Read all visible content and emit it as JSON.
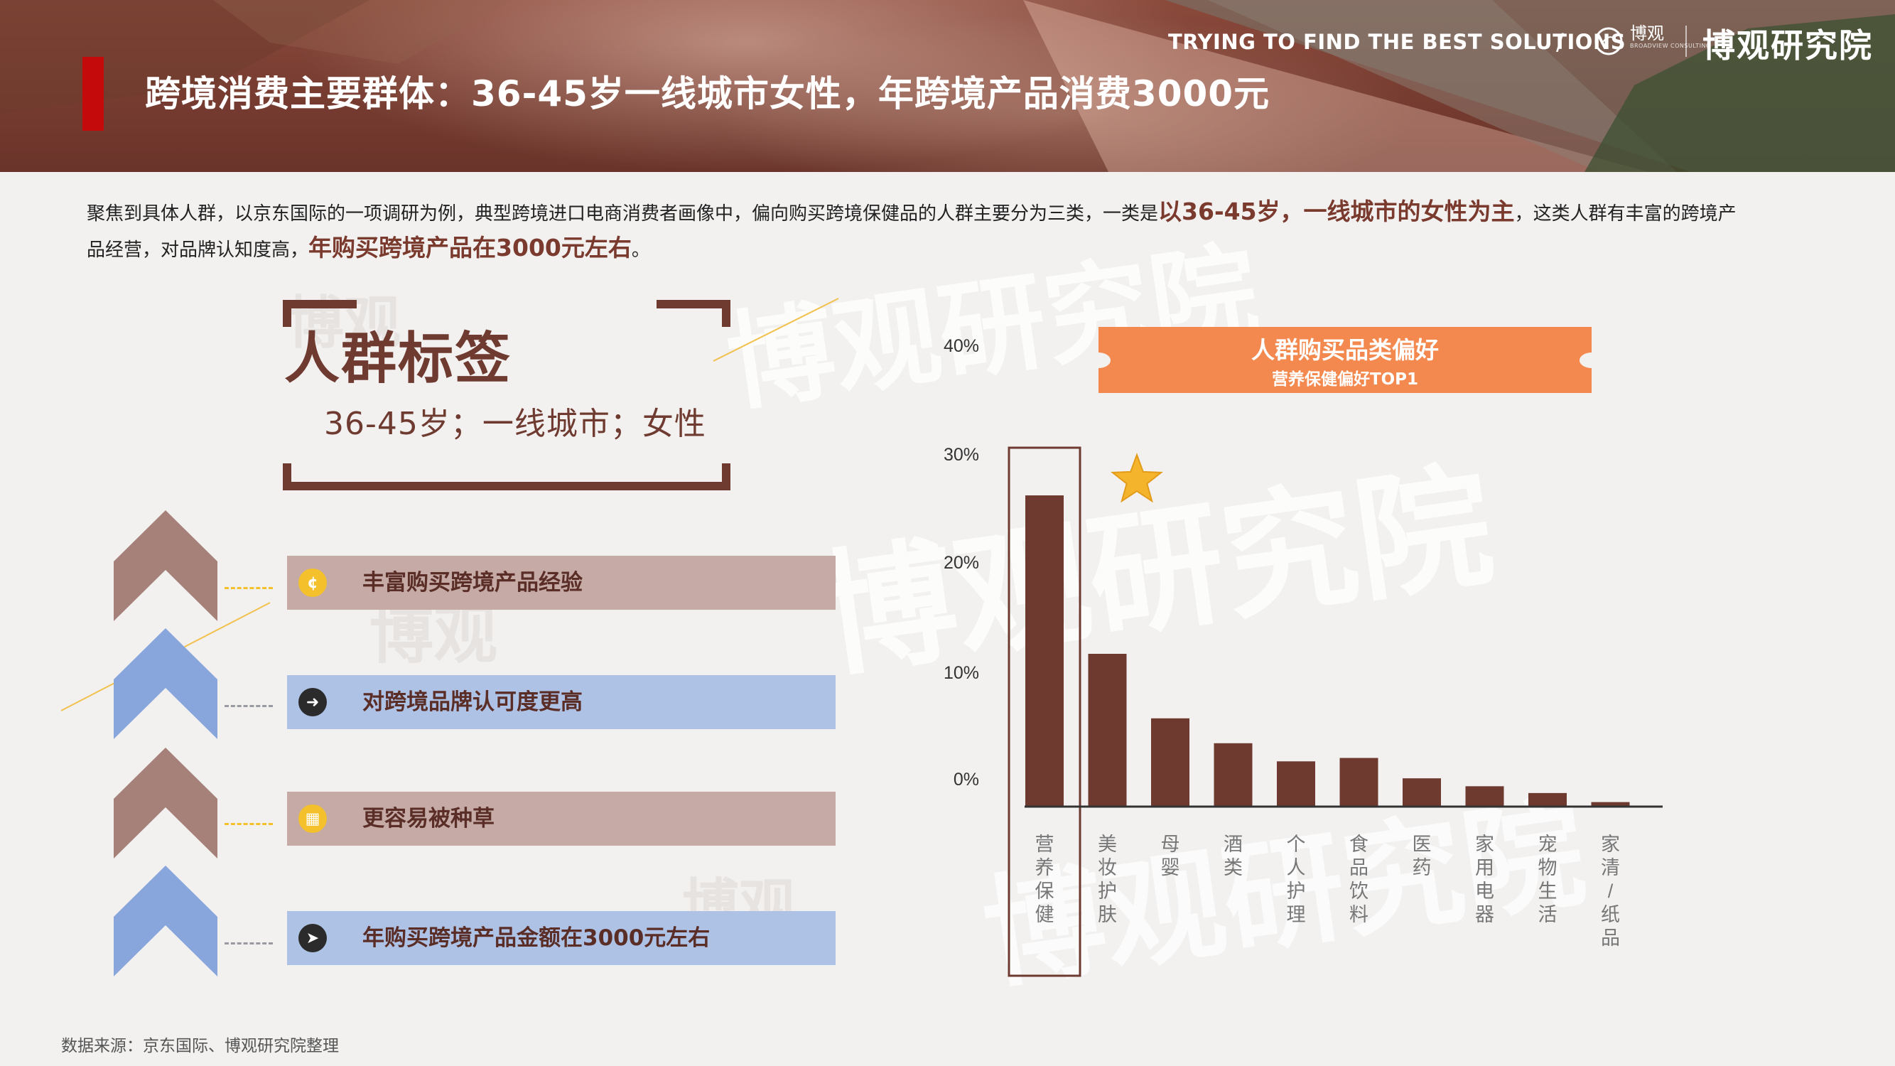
{
  "header": {
    "title": "跨境消费主要群体：36-45岁一线城市女性，年跨境产品消费3000元",
    "tagline": "TRYING TO FIND THE BEST SOLUTIONS",
    "slash": "/",
    "logo_small": "博观",
    "logo_small_sub": "BROADVIEW CONSULTING",
    "brand": "博观研究院"
  },
  "description": {
    "part1": "聚焦到具体人群，以京东国际的一项调研为例，典型跨境进口电商消费者画像中，偏向购买跨境保健品的人群主要分为三类，一类是",
    "highlight1": "以36-45岁，一线城市的女性为主",
    "part2": "，这类人群有丰富的跨境产品经营，对品牌认知度高，",
    "highlight2": "年购买跨境产品在3000元左右",
    "part3": "。"
  },
  "persona": {
    "title": "人群标签",
    "subtitle": "36-45岁；一线城市；女性"
  },
  "features": [
    {
      "label": "丰富购买跨境产品经验",
      "icon": "coin-icon",
      "color": "#c5aaa6"
    },
    {
      "label": "对跨境品牌认可度更高",
      "icon": "arrow-right-icon",
      "color": "#aec2e6"
    },
    {
      "label": "更容易被种草",
      "icon": "grid-icon",
      "color": "#c5aaa6"
    },
    {
      "label": "年购买跨境产品金额在3000元左右",
      "icon": "send-icon",
      "color": "#aec2e6"
    }
  ],
  "colors": {
    "bar": "#6e3a30",
    "highlight_box": "#6e3a30",
    "legend_bg": "#f4894f",
    "star": "#f4b42c",
    "title_accent": "#c40a0a"
  },
  "chart_data": {
    "type": "bar",
    "title": "人群购买品类偏好",
    "subtitle": "营养保健偏好TOP1",
    "categories": [
      "营养保健",
      "美妆护肤",
      "母婴",
      "酒类",
      "个人护理",
      "食品饮料",
      "医药",
      "家用电器",
      "宠物生活",
      "家清/纸品"
    ],
    "values": [
      27.5,
      13.5,
      7.8,
      5.6,
      4.0,
      4.3,
      2.5,
      1.8,
      1.2,
      0.4
    ],
    "y_ticks": [
      "0%",
      "10%",
      "20%",
      "30%",
      "40%"
    ],
    "ylim": [
      0,
      40
    ],
    "highlight": "营养保健",
    "grid": false
  },
  "source": "数据来源：京东国际、博观研究院整理"
}
